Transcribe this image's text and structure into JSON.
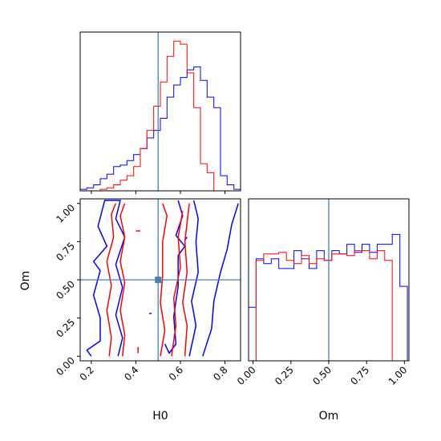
{
  "chart_data": {
    "type": "corner",
    "parameters": [
      "H0",
      "Om"
    ],
    "truth": {
      "H0": 0.5,
      "Om": 0.5
    },
    "colors": {
      "series_a": "#0000ff",
      "series_b": "#ff0000",
      "truth": "#4682b4"
    },
    "axes": {
      "H0": {
        "label": "H0",
        "range": [
          0.15,
          0.87
        ],
        "ticks": [
          0.2,
          0.4,
          0.6,
          0.8
        ],
        "tick_labels": [
          "0.2",
          "0.4",
          "0.6",
          "0.8"
        ]
      },
      "Om": {
        "label": "Om",
        "range": [
          -0.03,
          1.03
        ],
        "ticks": [
          0.0,
          0.25,
          0.5,
          0.75,
          1.0
        ],
        "tick_labels": [
          "0.00",
          "0.25",
          "0.50",
          "0.75",
          "1.00"
        ]
      }
    },
    "hist_H0": {
      "bin_edges": [
        0.15,
        0.18,
        0.21,
        0.24,
        0.27,
        0.3,
        0.33,
        0.36,
        0.39,
        0.42,
        0.45,
        0.48,
        0.51,
        0.54,
        0.57,
        0.6,
        0.63,
        0.66,
        0.69,
        0.72,
        0.75,
        0.78,
        0.81,
        0.84,
        0.87
      ],
      "series_a": [
        0.01,
        0.02,
        0.04,
        0.08,
        0.11,
        0.16,
        0.17,
        0.2,
        0.24,
        0.28,
        0.35,
        0.4,
        0.48,
        0.62,
        0.7,
        0.75,
        0.8,
        0.82,
        0.73,
        0.62,
        0.55,
        0.1,
        0.04,
        0.01
      ],
      "series_b": [
        0.0,
        0.0,
        0.0,
        0.01,
        0.02,
        0.04,
        0.07,
        0.1,
        0.16,
        0.28,
        0.4,
        0.56,
        0.72,
        0.89,
        0.99,
        0.97,
        0.78,
        0.55,
        0.18,
        0.12,
        0.0,
        0.0,
        0.0,
        0.0
      ]
    },
    "hist_Om": {
      "bin_edges": [
        -0.03,
        0.02,
        0.07,
        0.12,
        0.17,
        0.22,
        0.27,
        0.32,
        0.37,
        0.42,
        0.47,
        0.52,
        0.57,
        0.62,
        0.67,
        0.72,
        0.77,
        0.82,
        0.87,
        0.92,
        0.97,
        1.02
      ],
      "series_a": [
        0.33,
        0.63,
        0.6,
        0.63,
        0.57,
        0.57,
        0.68,
        0.63,
        0.57,
        0.68,
        0.62,
        0.68,
        0.66,
        0.72,
        0.67,
        0.72,
        0.67,
        0.72,
        0.72,
        0.78,
        0.46
      ],
      "series_b": [
        0.0,
        0.62,
        0.66,
        0.66,
        0.67,
        0.62,
        0.6,
        0.65,
        0.6,
        0.63,
        0.62,
        0.66,
        0.66,
        0.65,
        0.68,
        0.68,
        0.63,
        0.68,
        0.62,
        0.0,
        0.0
      ]
    },
    "contours": {
      "series_a": [
        [
          [
            0.2,
            0.0
          ],
          [
            0.18,
            0.04
          ],
          [
            0.24,
            0.1
          ],
          [
            0.24,
            0.25
          ],
          [
            0.21,
            0.4
          ],
          [
            0.24,
            0.56
          ],
          [
            0.21,
            0.62
          ],
          [
            0.27,
            0.72
          ],
          [
            0.23,
            0.85
          ],
          [
            0.26,
            1.02
          ],
          [
            0.33,
            1.02
          ],
          [
            0.31,
            0.9
          ],
          [
            0.35,
            0.78
          ],
          [
            0.31,
            0.6
          ],
          [
            0.34,
            0.45
          ],
          [
            0.31,
            0.27
          ],
          [
            0.34,
            0.12
          ],
          [
            0.32,
            0.0
          ]
        ],
        [
          [
            0.64,
            0.0
          ],
          [
            0.67,
            0.2
          ],
          [
            0.65,
            0.36
          ],
          [
            0.68,
            0.55
          ],
          [
            0.67,
            0.75
          ],
          [
            0.68,
            0.9
          ],
          [
            0.66,
            1.02
          ]
        ],
        [
          [
            0.7,
            0.0
          ],
          [
            0.74,
            0.18
          ],
          [
            0.75,
            0.36
          ],
          [
            0.78,
            0.55
          ],
          [
            0.81,
            0.7
          ],
          [
            0.83,
            0.86
          ],
          [
            0.86,
            1.0
          ]
        ],
        [
          [
            0.53,
            0.08
          ],
          [
            0.55,
            0.02
          ],
          [
            0.58,
            0.08
          ],
          [
            0.57,
            0.26
          ],
          [
            0.59,
            0.46
          ],
          [
            0.59,
            0.66
          ],
          [
            0.62,
            0.72
          ],
          [
            0.58,
            0.79
          ],
          [
            0.61,
            0.92
          ],
          [
            0.59,
            1.02
          ]
        ],
        [
          [
            0.12,
            0.8
          ],
          [
            0.14,
            0.77
          ],
          [
            0.12,
            0.75
          ]
        ],
        [
          [
            0.63,
            0.78
          ],
          [
            0.62,
            0.76
          ]
        ],
        [
          [
            0.47,
            0.28
          ],
          [
            0.46,
            0.28
          ]
        ]
      ],
      "series_b": [
        [
          [
            0.28,
            0.0
          ],
          [
            0.29,
            0.12
          ],
          [
            0.27,
            0.3
          ],
          [
            0.29,
            0.46
          ],
          [
            0.27,
            0.62
          ],
          [
            0.3,
            0.78
          ],
          [
            0.29,
            0.93
          ],
          [
            0.31,
            1.0
          ]
        ],
        [
          [
            0.34,
            0.0
          ],
          [
            0.35,
            0.14
          ],
          [
            0.33,
            0.3
          ],
          [
            0.35,
            0.48
          ],
          [
            0.33,
            0.62
          ],
          [
            0.35,
            0.78
          ],
          [
            0.33,
            0.92
          ],
          [
            0.35,
            1.0
          ]
        ],
        [
          [
            0.51,
            0.0
          ],
          [
            0.53,
            0.17
          ],
          [
            0.51,
            0.35
          ],
          [
            0.52,
            0.52
          ],
          [
            0.52,
            0.75
          ],
          [
            0.54,
            0.92
          ],
          [
            0.52,
            1.0
          ]
        ],
        [
          [
            0.56,
            0.0
          ],
          [
            0.58,
            0.2
          ],
          [
            0.57,
            0.38
          ],
          [
            0.6,
            0.58
          ],
          [
            0.59,
            0.78
          ],
          [
            0.61,
            0.95
          ]
        ],
        [
          [
            0.62,
            0.0
          ],
          [
            0.63,
            0.2
          ],
          [
            0.61,
            0.35
          ],
          [
            0.63,
            0.55
          ],
          [
            0.62,
            0.75
          ],
          [
            0.64,
            1.0
          ]
        ],
        [
          [
            0.4,
            0.82
          ],
          [
            0.42,
            0.82
          ]
        ],
        [
          [
            0.41,
            0.02
          ],
          [
            0.41,
            0.06
          ]
        ]
      ]
    }
  }
}
